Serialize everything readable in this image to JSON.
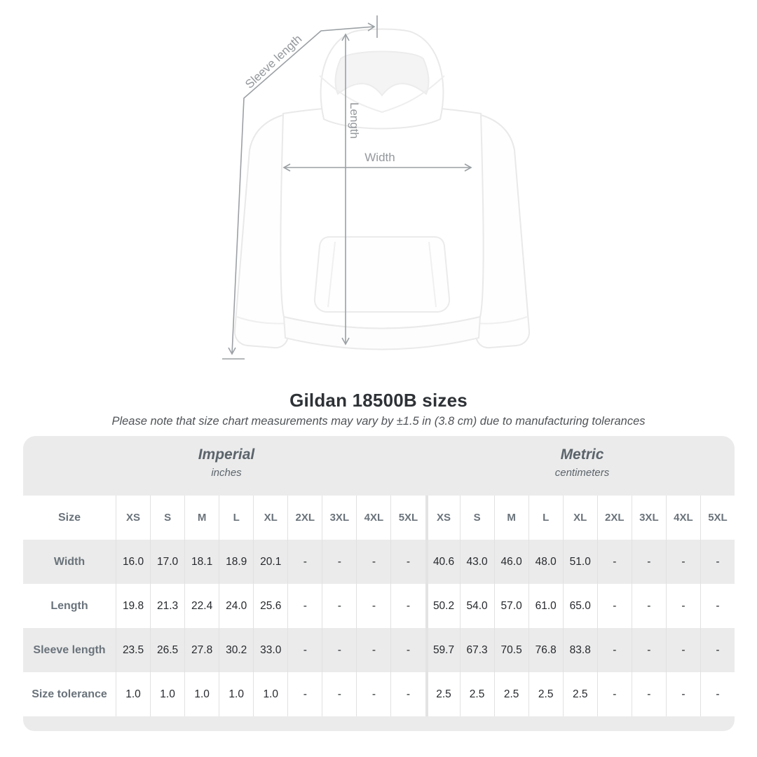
{
  "hero": {
    "labels": {
      "sleeve": "Sleeve length",
      "length": "Length",
      "width": "Width"
    }
  },
  "title": "Gildan 18500B sizes",
  "subtitle": "Please note that size chart measurements may vary by ±1.5 in (3.8 cm) due to manufacturing tolerances",
  "table": {
    "sections": [
      {
        "name": "Imperial",
        "unit": "inches"
      },
      {
        "name": "Metric",
        "unit": "centimeters"
      }
    ],
    "size_label": "Size",
    "sizes": [
      "XS",
      "S",
      "M",
      "L",
      "XL",
      "2XL",
      "3XL",
      "4XL",
      "5XL"
    ],
    "rows": [
      {
        "label": "Width",
        "imperial": [
          "16.0",
          "17.0",
          "18.1",
          "18.9",
          "20.1",
          "-",
          "-",
          "-",
          "-"
        ],
        "metric": [
          "40.6",
          "43.0",
          "46.0",
          "48.0",
          "51.0",
          "-",
          "-",
          "-",
          "-"
        ]
      },
      {
        "label": "Length",
        "imperial": [
          "19.8",
          "21.3",
          "22.4",
          "24.0",
          "25.6",
          "-",
          "-",
          "-",
          "-"
        ],
        "metric": [
          "50.2",
          "54.0",
          "57.0",
          "61.0",
          "65.0",
          "-",
          "-",
          "-",
          "-"
        ]
      },
      {
        "label": "Sleeve length",
        "imperial": [
          "23.5",
          "26.5",
          "27.8",
          "30.2",
          "33.0",
          "-",
          "-",
          "-",
          "-"
        ],
        "metric": [
          "59.7",
          "67.3",
          "70.5",
          "76.8",
          "83.8",
          "-",
          "-",
          "-",
          "-"
        ]
      },
      {
        "label": "Size tolerance",
        "imperial": [
          "1.0",
          "1.0",
          "1.0",
          "1.0",
          "1.0",
          "-",
          "-",
          "-",
          "-"
        ],
        "metric": [
          "2.5",
          "2.5",
          "2.5",
          "2.5",
          "2.5",
          "-",
          "-",
          "-",
          "-"
        ]
      }
    ]
  },
  "colors": {
    "band_gray": "#ebebeb",
    "grid_line": "#e1e1e1",
    "label_text": "#6a737b",
    "value_text": "#26292d",
    "arrow_gray": "#9ba0a4",
    "title_text": "#2e3236"
  },
  "chart_data": {
    "type": "table",
    "title": "Gildan 18500B sizes",
    "note": "Size chart measurements may vary by ±1.5 in (3.8 cm) due to manufacturing tolerances",
    "sections": [
      "Imperial (inches)",
      "Metric (centimeters)"
    ],
    "sizes": [
      "XS",
      "S",
      "M",
      "L",
      "XL",
      "2XL",
      "3XL",
      "4XL",
      "5XL"
    ],
    "rows": [
      {
        "measure": "Width",
        "imperial_in": [
          16.0,
          17.0,
          18.1,
          18.9,
          20.1,
          null,
          null,
          null,
          null
        ],
        "metric_cm": [
          40.6,
          43.0,
          46.0,
          48.0,
          51.0,
          null,
          null,
          null,
          null
        ]
      },
      {
        "measure": "Length",
        "imperial_in": [
          19.8,
          21.3,
          22.4,
          24.0,
          25.6,
          null,
          null,
          null,
          null
        ],
        "metric_cm": [
          50.2,
          54.0,
          57.0,
          61.0,
          65.0,
          null,
          null,
          null,
          null
        ]
      },
      {
        "measure": "Sleeve length",
        "imperial_in": [
          23.5,
          26.5,
          27.8,
          30.2,
          33.0,
          null,
          null,
          null,
          null
        ],
        "metric_cm": [
          59.7,
          67.3,
          70.5,
          76.8,
          83.8,
          null,
          null,
          null,
          null
        ]
      },
      {
        "measure": "Size tolerance",
        "imperial_in": [
          1.0,
          1.0,
          1.0,
          1.0,
          1.0,
          null,
          null,
          null,
          null
        ],
        "metric_cm": [
          2.5,
          2.5,
          2.5,
          2.5,
          2.5,
          null,
          null,
          null,
          null
        ]
      }
    ]
  }
}
